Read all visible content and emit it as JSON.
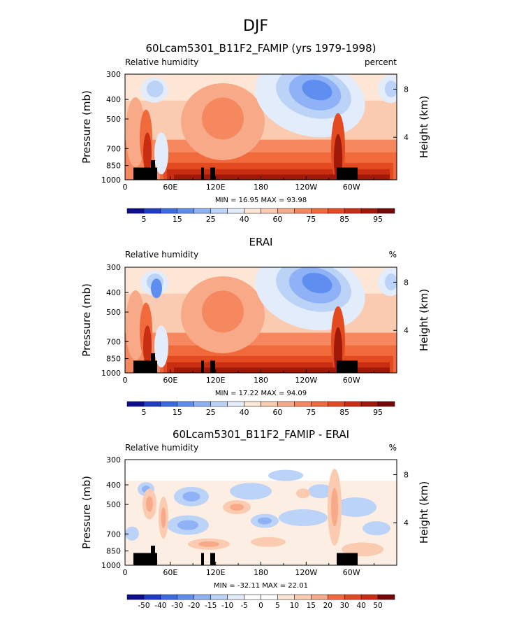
{
  "figure": {
    "season": "DJF",
    "colors": {
      "bar_abs": [
        "#0d0d8f",
        "#1f3cc7",
        "#3a6be0",
        "#5e8ff0",
        "#8fb1f5",
        "#bcd3f8",
        "#e3ecfb",
        "#fde6d6",
        "#fbcbb1",
        "#f8aa88",
        "#f5885f",
        "#f06a3c",
        "#e44a20",
        "#c92e12",
        "#a01808",
        "#760606"
      ],
      "bar_diff": [
        "#0d0d8f",
        "#1f3cc7",
        "#3a6be0",
        "#5e8ff0",
        "#8fb1f5",
        "#bcd3f8",
        "#e3ecfb",
        "#ffffff",
        "#ffffff",
        "#fde6d6",
        "#fbcbb1",
        "#f8aa88",
        "#f06a3c",
        "#e44a20",
        "#c92e12",
        "#760606"
      ],
      "land": "#000000"
    }
  },
  "chart_data": [
    {
      "type": "heatmap",
      "title": "60Lcam5301_B11F2_FAMIP (yrs 1979-1998)",
      "left_label": "Relative humidity",
      "right_label": "percent",
      "ylabel": "Pressure (mb)",
      "y2label": "Height (km)",
      "x_ticks": [
        "0",
        "60E",
        "120E",
        "180",
        "120W",
        "60W"
      ],
      "y_ticks": [
        "300",
        "400",
        "500",
        "700",
        "850",
        "1000"
      ],
      "y2_ticks": [
        "8",
        "4"
      ],
      "xlim": [
        0,
        360
      ],
      "ylim": [
        1000,
        300
      ],
      "stats": {
        "min": "16.95",
        "max": "93.98"
      },
      "stats_text": "MIN =   16.95   MAX =   93.98",
      "colorbar_labels": [
        "5",
        "15",
        "25",
        "40",
        "60",
        "75",
        "85",
        "95"
      ]
    },
    {
      "type": "heatmap",
      "title": "ERAI",
      "left_label": "Relative humidity",
      "right_label": "%",
      "ylabel": "Pressure (mb)",
      "y2label": "Height (km)",
      "x_ticks": [
        "0",
        "60E",
        "120E",
        "180",
        "120W",
        "60W"
      ],
      "y_ticks": [
        "300",
        "400",
        "500",
        "700",
        "850",
        "1000"
      ],
      "y2_ticks": [
        "8",
        "4"
      ],
      "xlim": [
        0,
        360
      ],
      "ylim": [
        1000,
        300
      ],
      "stats": {
        "min": "17.22",
        "max": "94.09"
      },
      "stats_text": "MIN =   17.22   MAX =   94.09",
      "colorbar_labels": [
        "5",
        "15",
        "25",
        "40",
        "60",
        "75",
        "85",
        "95"
      ]
    },
    {
      "type": "heatmap",
      "title": "60Lcam5301_B11F2_FAMIP - ERAI",
      "left_label": "Relative humidity",
      "right_label": "%",
      "ylabel": "Pressure (mb)",
      "y2label": "Height (km)",
      "x_ticks": [
        "0",
        "60E",
        "120E",
        "180",
        "120W",
        "60W"
      ],
      "y_ticks": [
        "300",
        "400",
        "500",
        "700",
        "850",
        "1000"
      ],
      "y2_ticks": [
        "8",
        "4"
      ],
      "xlim": [
        0,
        360
      ],
      "ylim": [
        1000,
        300
      ],
      "stats": {
        "min": "-32.11",
        "max": "22.01"
      },
      "stats_text": "MIN = -32.11   MAX =   22.01",
      "colorbar_labels": [
        "-50",
        "-40",
        "-30",
        "-20",
        "-15",
        "-10",
        "-5",
        "0",
        "5",
        "10",
        "15",
        "20",
        "30",
        "40",
        "50"
      ]
    }
  ]
}
